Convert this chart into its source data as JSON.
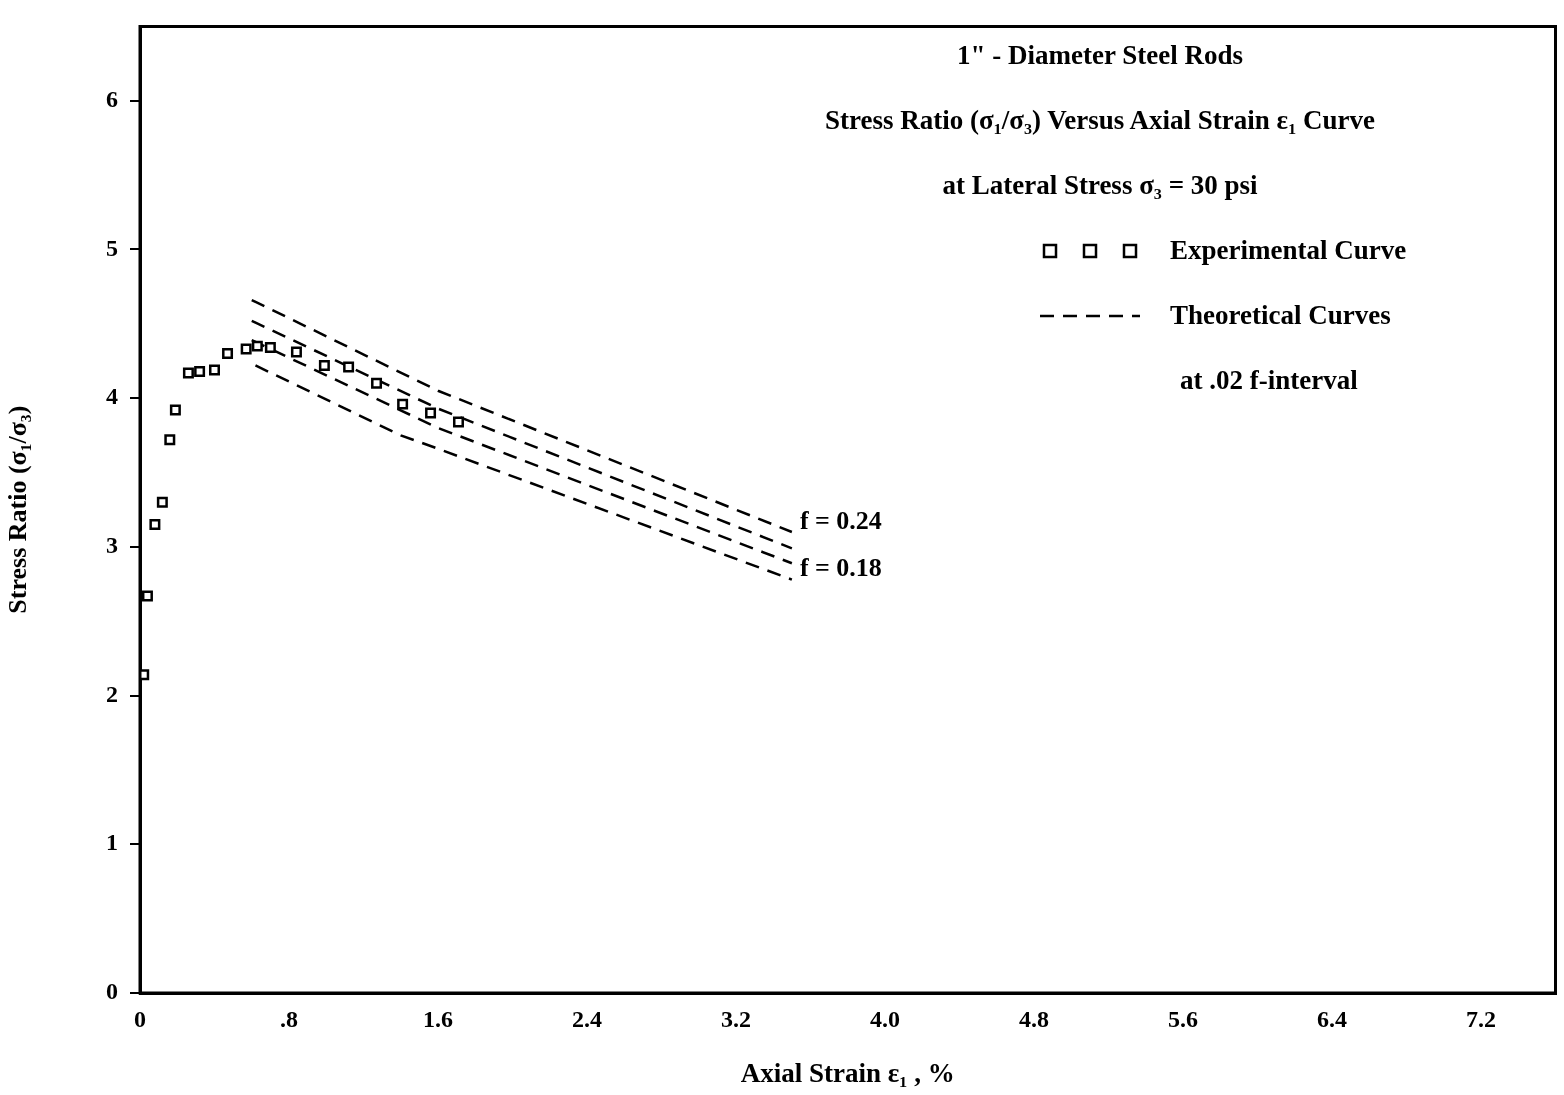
{
  "chart_data": {
    "type": "scatter",
    "title": "1\" - Diameter Steel Rods",
    "subtitle": "Stress Ratio (σ₁/σ₃) Versus Axial Strain ε₁ Curve",
    "xlabel": "Axial Strain ε₁ , %",
    "ylabel": "Stress Ratio (σ₁/σ₃)",
    "xlim": [
      0,
      7.6
    ],
    "ylim": [
      0,
      6.5
    ],
    "xticks": [
      0,
      {
        "value": 0.8,
        "label": ".8"
      },
      1.6,
      2.4,
      3.2,
      {
        "value": 4,
        "label": "4.0"
      },
      4.8,
      5.6,
      6.4,
      7.2
    ],
    "yticks": [
      0,
      1,
      2,
      3,
      4,
      5,
      6
    ],
    "grid": false,
    "legend": "top right",
    "series": [
      {
        "name": "Experimental Curve",
        "type": "scatter",
        "marker": "square",
        "color": "#000000",
        "x": [
          0.02,
          0.04,
          0.08,
          0.12,
          0.16,
          0.19,
          0.26,
          0.32,
          0.4,
          0.47,
          0.57,
          0.63,
          0.7,
          0.84,
          0.99,
          1.12,
          1.27,
          1.41,
          1.56,
          1.71
        ],
        "values": [
          2.14,
          2.67,
          3.15,
          3.3,
          3.72,
          3.92,
          4.17,
          4.18,
          4.19,
          4.3,
          4.33,
          4.35,
          4.34,
          4.31,
          4.22,
          4.21,
          4.1,
          3.96,
          3.9,
          3.84
        ]
      },
      {
        "name": "Theoretical Curves",
        "type": "line",
        "line_style": "dashed",
        "marker": "none",
        "color": "#000000",
        "x": [
          0.6,
          1.6,
          3.5
        ],
        "values": [
          4.66,
          4.05,
          3.1
        ]
      },
      {
        "type": "line",
        "line_style": "dashed",
        "marker": "none",
        "color": "#000000",
        "x": [
          0.6,
          1.6,
          3.5
        ],
        "values": [
          4.52,
          3.93,
          2.99
        ]
      },
      {
        "type": "line",
        "line_style": "dashed",
        "marker": "none",
        "color": "#000000",
        "x": [
          0.6,
          1.6,
          3.5
        ],
        "values": [
          4.39,
          3.8,
          2.89
        ]
      },
      {
        "type": "line",
        "line_style": "dashed",
        "marker": "none",
        "color": "#000000",
        "x": [
          0.62,
          1.4,
          1.6,
          3.5
        ],
        "values": [
          4.22,
          3.75,
          3.66,
          2.78
        ]
      }
    ],
    "annotations": [
      "at Lateral Stress σ₃ = 30 psi",
      "at .02 f-interval",
      {
        "text": "f = 0.24",
        "x": 3.5,
        "y": 3.1
      },
      {
        "text": "f = 0.18",
        "x": 3.5,
        "y": 2.78
      }
    ]
  }
}
